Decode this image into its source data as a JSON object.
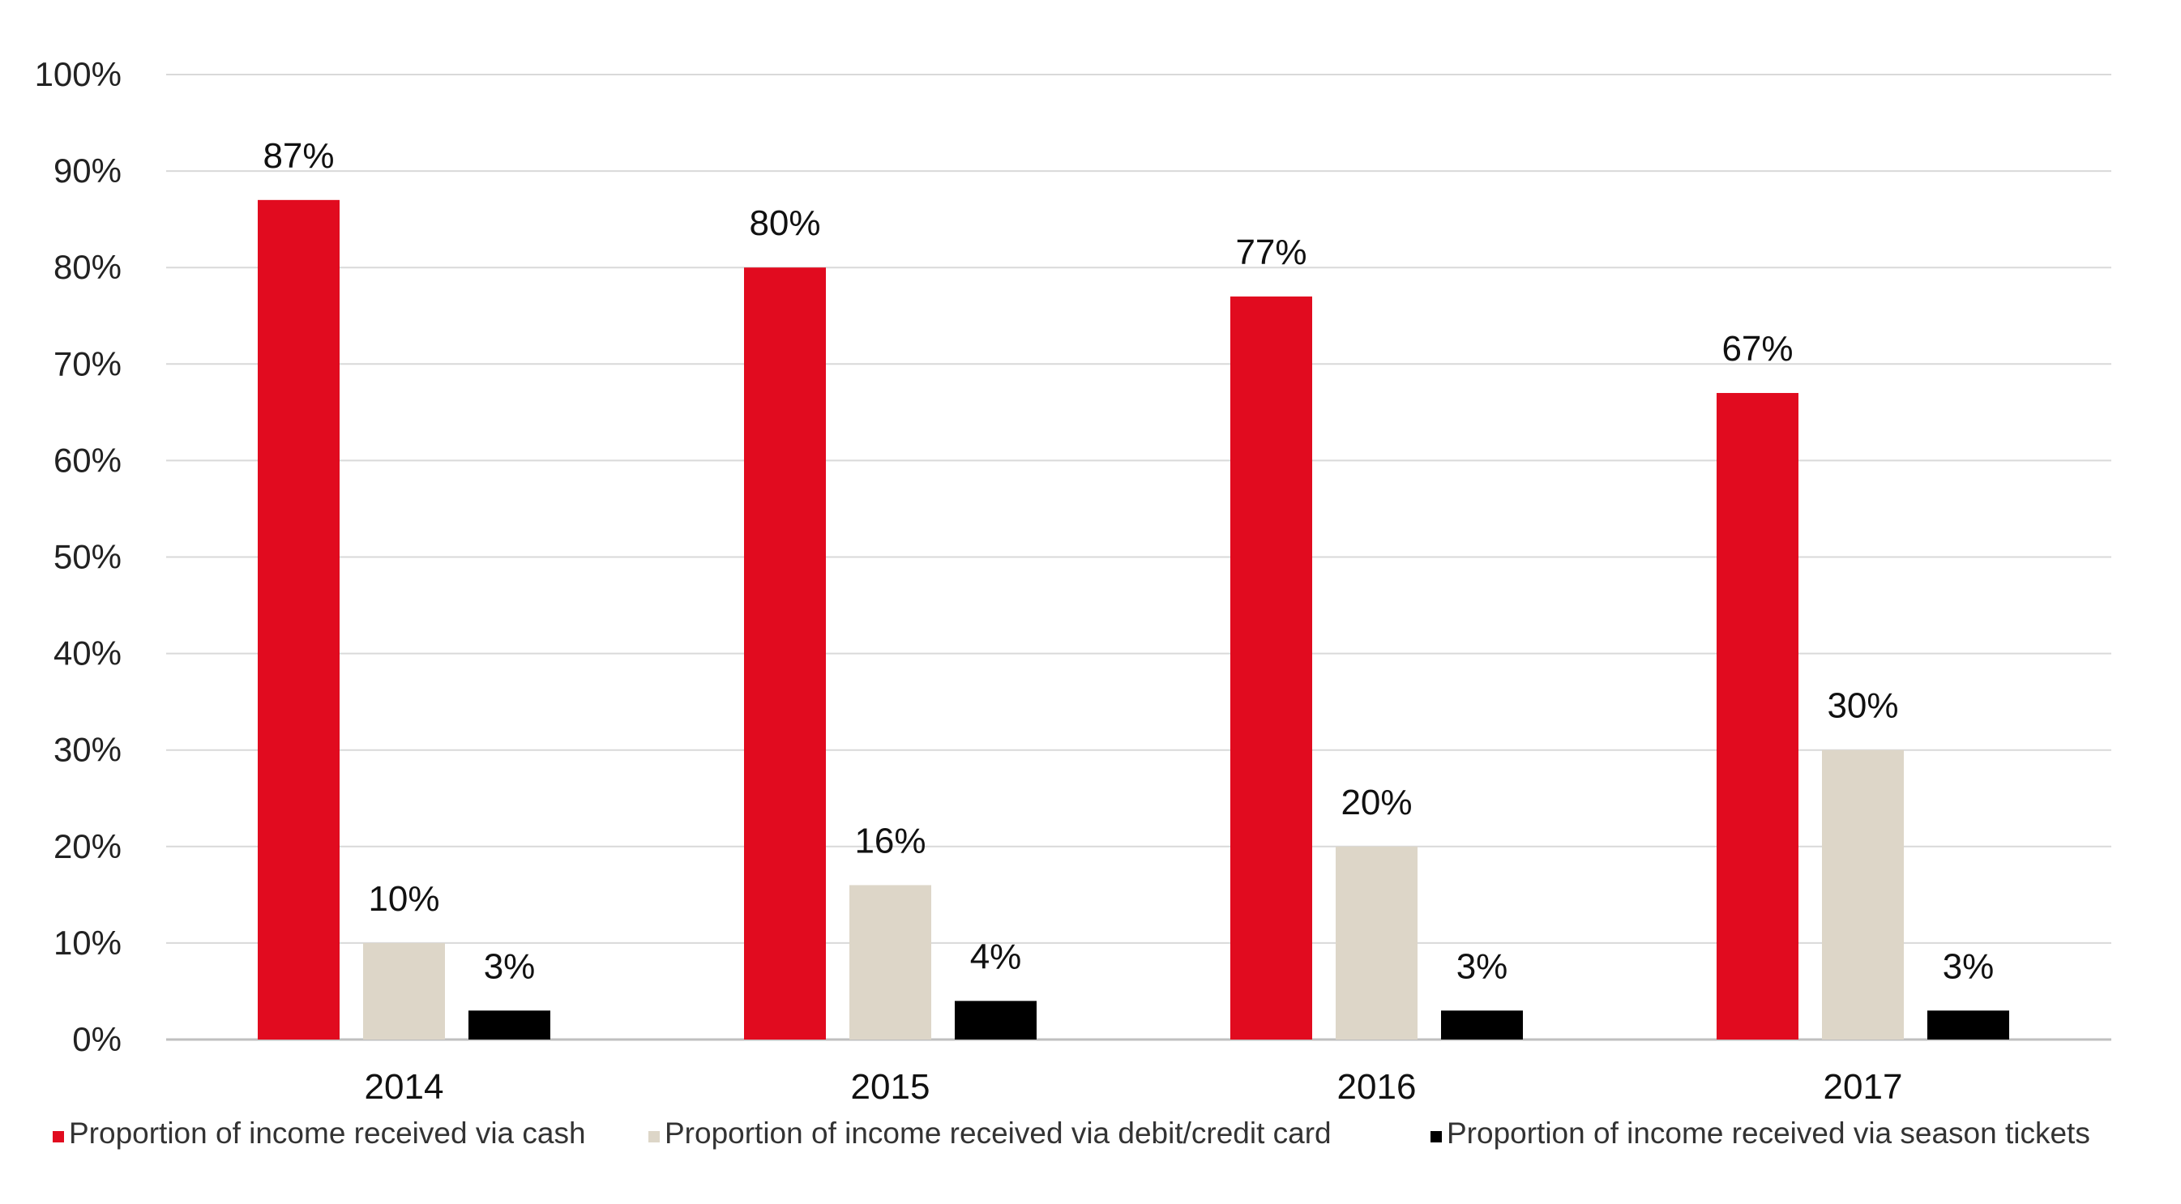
{
  "chart_data": {
    "type": "bar",
    "categories": [
      "2014",
      "2015",
      "2016",
      "2017"
    ],
    "series": [
      {
        "name": "Proportion of income received via cash",
        "values": [
          87,
          80,
          77,
          67
        ],
        "labels": [
          "87%",
          "80%",
          "77%",
          "67%"
        ],
        "color": "#e10b1f"
      },
      {
        "name": "Proportion of income received via debit/credit card",
        "values": [
          10,
          16,
          20,
          30
        ],
        "labels": [
          "10%",
          "16%",
          "20%",
          "30%"
        ],
        "color": "#ddd6c8"
      },
      {
        "name": "Proportion of income received via season tickets",
        "values": [
          3,
          4,
          3,
          3
        ],
        "labels": [
          "3%",
          "4%",
          "3%",
          "3%"
        ],
        "color": "#000000"
      }
    ],
    "ylim": [
      0,
      100
    ],
    "yticks": [
      0,
      10,
      20,
      30,
      40,
      50,
      60,
      70,
      80,
      90,
      100
    ],
    "ytick_labels": [
      "0%",
      "10%",
      "20%",
      "30%",
      "40%",
      "50%",
      "60%",
      "70%",
      "80%",
      "90%",
      "100%"
    ],
    "grid": true,
    "legend_position": "bottom"
  }
}
